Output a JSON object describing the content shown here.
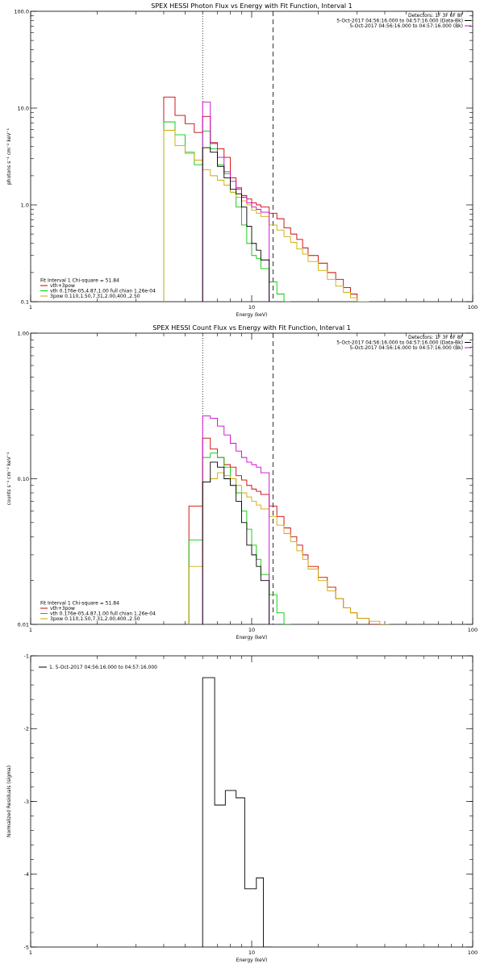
{
  "chart_data": [
    {
      "type": "line",
      "title": "SPEX HESSI Photon Flux vs Energy with Fit Function, Interval 1",
      "xlabel": "Energy (keV)",
      "ylabel": "photons s⁻¹ cm⁻² keV⁻¹",
      "xscale": "log",
      "yscale": "log",
      "xlim": [
        1,
        100
      ],
      "ylim": [
        0.1,
        100
      ],
      "x_ticks": [
        {
          "v": 1,
          "label": "1"
        },
        {
          "v": 10,
          "label": "10"
        },
        {
          "v": 100,
          "label": "100"
        }
      ],
      "y_ticks": [
        {
          "v": 0.1,
          "label": "0.1"
        },
        {
          "v": 1,
          "label": "1.0"
        },
        {
          "v": 10,
          "label": "10.0"
        },
        {
          "v": 100,
          "label": "100.0"
        }
      ],
      "vlines": [
        {
          "x": 6,
          "style": "dotted"
        },
        {
          "x": 12.5,
          "style": "dashed"
        }
      ],
      "legend_top": {
        "placement": "top-right",
        "lines": [
          {
            "text": "Detectors: 1F 3F 6F 8F",
            "color": null
          },
          {
            "text": "5-Oct-2017 04:56:16.000 to 04:57:16.000 (Data-Bk)",
            "color": "#000000"
          },
          {
            "text": "5-Oct-2017 04:56:16.000 to 04:57:16.000 (Bk)",
            "color": "#cc00cc"
          }
        ]
      },
      "legend_bottom": {
        "placement": "bottom-left",
        "lines": [
          {
            "text": "Fit Interval 1   Chi-square = 51.84",
            "color": null
          },
          {
            "text": "vth+3pow",
            "color": "#cc0000"
          },
          {
            "text": "vth 0.176e-05,4.87,1.00  full chian 1.26e-04",
            "color": "#00cc00"
          },
          {
            "text": "3pow 0.110,1.50,7.31,2.00,400.,2.50",
            "color": "#ccaa00"
          }
        ]
      },
      "series": [
        {
          "color": "#cc0000",
          "edges": [
            4,
            4.5,
            5,
            5.5,
            6,
            6.5,
            7,
            7.5,
            8,
            8.5,
            9,
            9.5,
            10,
            10.5,
            11,
            12,
            13,
            14,
            15,
            16,
            17,
            18,
            20,
            22,
            24,
            26,
            28,
            30
          ],
          "values": [
            13,
            8.4,
            6.9,
            5.6,
            8.2,
            4.4,
            3.8,
            3.1,
            1.9,
            1.5,
            1.25,
            1.15,
            1.05,
            1.0,
            0.95,
            0.82,
            0.72,
            0.58,
            0.5,
            0.44,
            0.36,
            0.3,
            0.25,
            0.2,
            0.17,
            0.14,
            0.12
          ]
        },
        {
          "color": "#00cc00",
          "edges": [
            4,
            4.5,
            5,
            5.5,
            6,
            6.5,
            7,
            7.5,
            8,
            8.5,
            9,
            9.5,
            10,
            10.5,
            11,
            12,
            13,
            14,
            15
          ],
          "values": [
            7.2,
            5.3,
            3.5,
            2.6,
            5.8,
            3.8,
            2.6,
            2.1,
            1.35,
            0.95,
            0.62,
            0.4,
            0.3,
            0.28,
            0.22,
            0.16,
            0.12,
            0.1
          ]
        },
        {
          "color": "#ccaa00",
          "edges": [
            4,
            4.5,
            5,
            5.5,
            6,
            6.5,
            7,
            7.5,
            8,
            8.5,
            9,
            9.5,
            10,
            10.5,
            11,
            12,
            13,
            14,
            15,
            16,
            17,
            18,
            20,
            22,
            24,
            26,
            28,
            30,
            34
          ],
          "values": [
            5.9,
            4.1,
            3.4,
            2.9,
            2.3,
            2.0,
            1.8,
            1.6,
            1.35,
            1.2,
            1.1,
            1.0,
            0.88,
            0.82,
            0.76,
            0.62,
            0.55,
            0.47,
            0.41,
            0.35,
            0.31,
            0.26,
            0.21,
            0.17,
            0.145,
            0.125,
            0.11,
            0.1
          ]
        },
        {
          "color": "#cc00cc",
          "edges": [
            6,
            6.5,
            7,
            7.5,
            8,
            8.5,
            9,
            9.5,
            10,
            10.5,
            11,
            12
          ],
          "values": [
            11.5,
            4.3,
            3.1,
            2.2,
            1.75,
            1.45,
            1.2,
            1.05,
            0.95,
            0.9,
            0.84
          ]
        },
        {
          "color": "#000000",
          "edges": [
            6,
            6.5,
            7,
            7.5,
            8,
            8.5,
            9,
            9.5,
            10,
            10.5,
            11,
            12
          ],
          "values": [
            3.9,
            3.5,
            2.5,
            1.9,
            1.45,
            1.3,
            0.95,
            0.6,
            0.4,
            0.34,
            0.27
          ]
        }
      ]
    },
    {
      "type": "line",
      "title": "SPEX HESSI Count Flux vs Energy with Fit Function, Interval 1",
      "xlabel": "Energy (keV)",
      "ylabel": "counts s⁻¹ cm⁻² keV⁻¹",
      "xscale": "log",
      "yscale": "log",
      "xlim": [
        1,
        100
      ],
      "ylim": [
        0.01,
        1
      ],
      "x_ticks": [
        {
          "v": 1,
          "label": "1"
        },
        {
          "v": 10,
          "label": "10"
        },
        {
          "v": 100,
          "label": "100"
        }
      ],
      "y_ticks": [
        {
          "v": 0.01,
          "label": "0.01"
        },
        {
          "v": 0.1,
          "label": "0.10"
        },
        {
          "v": 1,
          "label": "1.00"
        }
      ],
      "vlines": [
        {
          "x": 6,
          "style": "dotted"
        },
        {
          "x": 12.5,
          "style": "dashed"
        }
      ],
      "legend_top": {
        "placement": "top-right",
        "lines": [
          {
            "text": "Detectors: 1F 3F 6F 8F",
            "color": null
          },
          {
            "text": "5-Oct-2017 04:56:16.000 to 04:57:16.000 (Data-Bk)",
            "color": "#000000"
          },
          {
            "text": "5-Oct-2017 04:56:16.000 to 04:57:16.000 (Bk)",
            "color": "#cc00cc"
          }
        ]
      },
      "legend_bottom": {
        "placement": "bottom-left",
        "lines": [
          {
            "text": "Fit Interval 1   Chi-square = 51.84",
            "color": null
          },
          {
            "text": "vth+3pow",
            "color": "#cc0000"
          },
          {
            "text": "vth 0.176e-05,4.87,1.00  full chian 1.26e-04",
            "color": "#00cc00"
          },
          {
            "text": "3pow 0.110,1.50,7.31,2.00,400.,2.50",
            "color": "#ccaa00"
          }
        ]
      },
      "series": [
        {
          "color": "#cc0000",
          "edges": [
            5.2,
            6,
            6.5,
            7,
            7.5,
            8,
            8.5,
            9,
            9.5,
            10,
            10.5,
            11,
            12,
            13,
            14,
            15,
            16,
            17,
            18,
            20,
            22,
            24,
            26,
            28,
            30,
            34,
            38
          ],
          "values": [
            0.065,
            0.19,
            0.16,
            0.14,
            0.125,
            0.12,
            0.105,
            0.098,
            0.09,
            0.085,
            0.082,
            0.078,
            0.065,
            0.055,
            0.046,
            0.04,
            0.035,
            0.03,
            0.025,
            0.021,
            0.018,
            0.015,
            0.013,
            0.012,
            0.011,
            0.01
          ]
        },
        {
          "color": "#00cc00",
          "edges": [
            5.2,
            6,
            6.5,
            7,
            7.5,
            8,
            8.5,
            9,
            9.5,
            10,
            10.5,
            11,
            12,
            13,
            14,
            15
          ],
          "values": [
            0.038,
            0.14,
            0.15,
            0.14,
            0.12,
            0.1,
            0.08,
            0.06,
            0.045,
            0.035,
            0.028,
            0.022,
            0.016,
            0.012,
            0.01
          ]
        },
        {
          "color": "#ccaa00",
          "edges": [
            5.2,
            6,
            6.5,
            7,
            7.5,
            8,
            8.5,
            9,
            9.5,
            10,
            10.5,
            11,
            12,
            13,
            14,
            15,
            16,
            17,
            18,
            20,
            22,
            24,
            26,
            28,
            30,
            34,
            38,
            42
          ],
          "values": [
            0.025,
            0.095,
            0.1,
            0.11,
            0.105,
            0.1,
            0.09,
            0.08,
            0.075,
            0.07,
            0.066,
            0.062,
            0.055,
            0.048,
            0.042,
            0.037,
            0.032,
            0.028,
            0.024,
            0.02,
            0.017,
            0.015,
            0.013,
            0.012,
            0.011,
            0.0105,
            0.01
          ]
        },
        {
          "color": "#cc00cc",
          "edges": [
            6,
            6.5,
            7,
            7.5,
            8,
            8.5,
            9,
            9.5,
            10,
            10.5,
            11,
            12
          ],
          "values": [
            0.27,
            0.26,
            0.23,
            0.2,
            0.175,
            0.155,
            0.14,
            0.13,
            0.125,
            0.12,
            0.11
          ]
        },
        {
          "color": "#000000",
          "edges": [
            6,
            6.5,
            7,
            7.5,
            8,
            8.5,
            9,
            9.5,
            10,
            10.5,
            11,
            12
          ],
          "values": [
            0.095,
            0.13,
            0.12,
            0.1,
            0.09,
            0.07,
            0.05,
            0.035,
            0.03,
            0.025,
            0.02
          ]
        }
      ]
    },
    {
      "type": "line",
      "title": "",
      "xlabel": "Energy (keV)",
      "ylabel": "Normalized Residuals (sigma)",
      "xscale": "log",
      "yscale": "linear",
      "xlim": [
        1,
        100
      ],
      "ylim": [
        -5,
        -1
      ],
      "x_ticks": [
        {
          "v": 1,
          "label": "1"
        },
        {
          "v": 10,
          "label": "10"
        },
        {
          "v": 100,
          "label": "100"
        }
      ],
      "y_ticks": [
        {
          "v": -5,
          "label": "-5"
        },
        {
          "v": -4,
          "label": "-4"
        },
        {
          "v": -3,
          "label": "-3"
        },
        {
          "v": -2,
          "label": "-2"
        },
        {
          "v": -1,
          "label": "-1"
        }
      ],
      "vlines": [],
      "legend_top": {
        "placement": "top-left",
        "lines": [
          {
            "text": "1.  5-Oct-2017 04:56:16.000 to 04:57:16.000",
            "color": "#000000"
          }
        ]
      },
      "legend_bottom": {
        "placement": "bottom-left",
        "lines": []
      },
      "series": [
        {
          "color": "#000000",
          "edges": [
            6,
            6.8,
            7.6,
            8.5,
            9.3,
            10.5,
            11.3,
            12.3
          ],
          "values": [
            -1.3,
            -3.05,
            -2.85,
            -2.95,
            -4.2,
            -4.05,
            -5
          ]
        }
      ]
    }
  ]
}
